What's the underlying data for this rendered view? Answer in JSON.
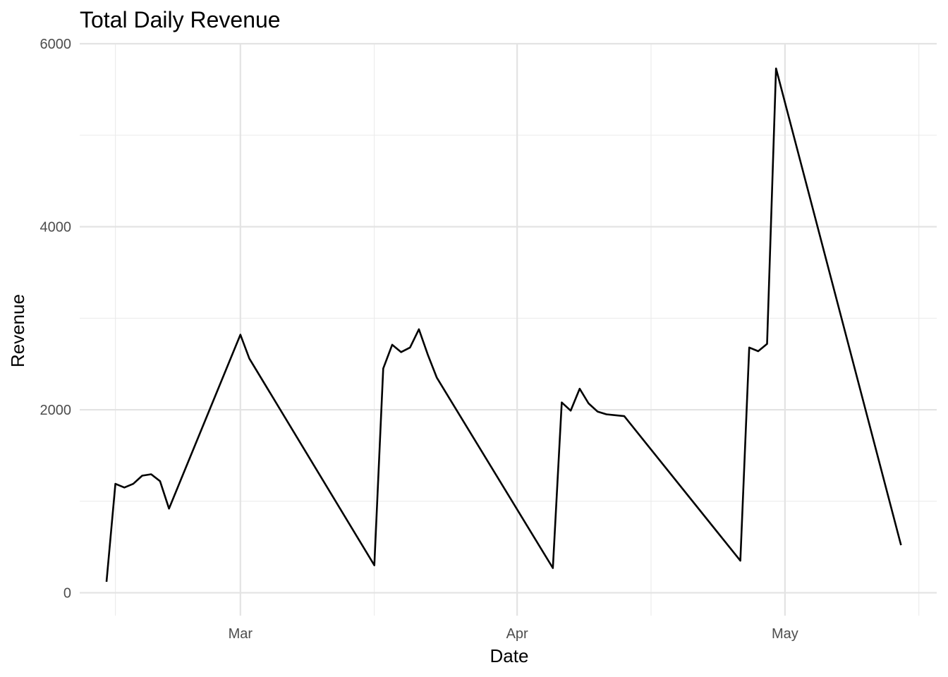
{
  "chart_data": {
    "type": "line",
    "title": "Total Daily Revenue",
    "xlabel": "Date",
    "ylabel": "Revenue",
    "x_tick_labels": [
      {
        "date": "2023-03-01",
        "label": "Mar"
      },
      {
        "date": "2023-04-01",
        "label": "Apr"
      },
      {
        "date": "2023-05-01",
        "label": "May"
      }
    ],
    "x_minor_gridlines": [
      "2023-02-15",
      "2023-03-16",
      "2023-04-16",
      "2023-05-16"
    ],
    "xlim": [
      "2023-02-11",
      "2023-05-18"
    ],
    "y_ticks": [
      0,
      2000,
      4000,
      6000
    ],
    "y_minor_gridlines": [
      1000,
      3000,
      5000
    ],
    "ylim": [
      -250,
      6000
    ],
    "grid": true,
    "line_color": "#000000",
    "series": [
      {
        "x": [
          "2023-02-14",
          "2023-02-15",
          "2023-02-16",
          "2023-02-17",
          "2023-02-18",
          "2023-02-19",
          "2023-02-20",
          "2023-02-21",
          "2023-03-01",
          "2023-03-02",
          "2023-03-16",
          "2023-03-17",
          "2023-03-18",
          "2023-03-19",
          "2023-03-20",
          "2023-03-21",
          "2023-03-22",
          "2023-03-23",
          "2023-04-05",
          "2023-04-06",
          "2023-04-07",
          "2023-04-08",
          "2023-04-09",
          "2023-04-10",
          "2023-04-11",
          "2023-04-12",
          "2023-04-13",
          "2023-04-26",
          "2023-04-27",
          "2023-04-28",
          "2023-04-29",
          "2023-04-30",
          "2023-05-14"
        ],
        "values": [
          120,
          1190,
          1150,
          1190,
          1280,
          1295,
          1220,
          920,
          2820,
          2560,
          300,
          2450,
          2710,
          2630,
          2680,
          2880,
          2600,
          2350,
          270,
          2080,
          1990,
          2230,
          2070,
          1980,
          1950,
          1940,
          1930,
          350,
          2680,
          2640,
          2720,
          5730,
          520
        ]
      }
    ]
  }
}
